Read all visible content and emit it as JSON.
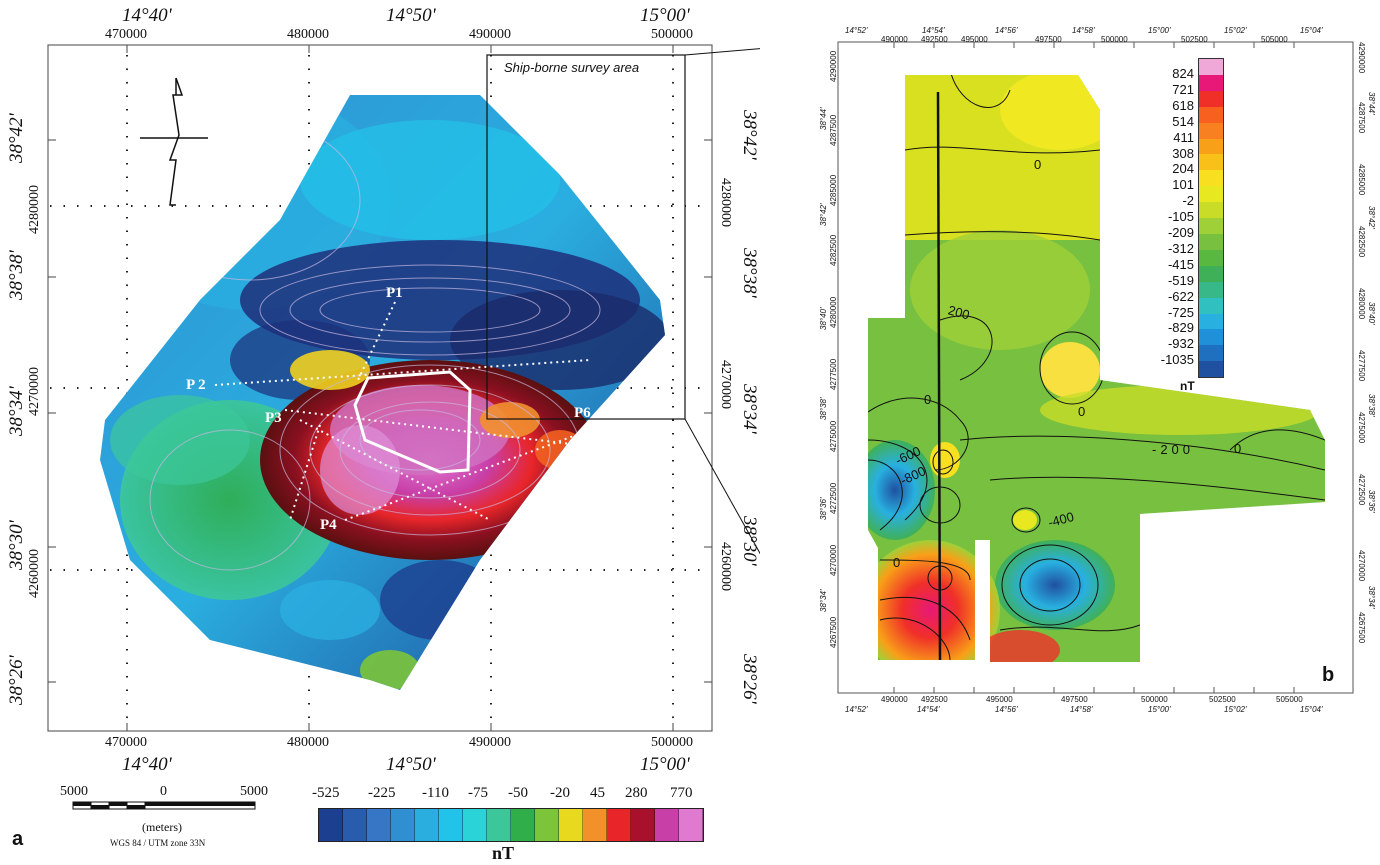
{
  "panel_a": {
    "label": "a",
    "lon_labels": [
      "14°40'",
      "14°50'",
      "15°00'"
    ],
    "easting_labels": [
      "470000",
      "480000",
      "490000",
      "500000"
    ],
    "northing_labels": [
      "4280000",
      "4270000",
      "4260000"
    ],
    "lat_labels_left": [
      "38°42'",
      "38°38'",
      "38°34'",
      "38°30'",
      "38°26'"
    ],
    "lat_labels_right": [
      "38°42'",
      "38°38'",
      "38°34'",
      "38°30'",
      "38°26'"
    ],
    "survey_area_label": "Ship-borne survey area",
    "profiles": [
      "P1",
      "P 2",
      "P3",
      "P4",
      "P6"
    ],
    "scale": {
      "left": "5000",
      "center": "0",
      "right": "5000",
      "unit": "(meters)",
      "datum": "WGS 84 / UTM zone 33N"
    },
    "colorbar": {
      "values": [
        "-525",
        "-225",
        "-110",
        "-75",
        "-50",
        "-20",
        "45",
        "280",
        "770"
      ],
      "unit": "nT",
      "colors": [
        "#1d3f8f",
        "#2a5cad",
        "#3676c4",
        "#2f8fd0",
        "#2aaee0",
        "#22c3e8",
        "#2ad3d8",
        "#3cc79a",
        "#2fae4a",
        "#7cc43a",
        "#e8d81e",
        "#f2902a",
        "#e8262a",
        "#a8102c",
        "#c83fa8",
        "#e07ad0"
      ]
    }
  },
  "panel_b": {
    "label": "b",
    "lon_labels_top": [
      "14°52'",
      "14°54'",
      "14°56'",
      "14°58'",
      "15°00'",
      "15°02'",
      "15°04'"
    ],
    "easting_labels_top": [
      "490000",
      "492500",
      "495000",
      "497500",
      "500000",
      "502500",
      "505000"
    ],
    "lon_labels_bottom": [
      "14°52'",
      "14°54'",
      "14°56'",
      "14°58'",
      "15°00'",
      "15°02'",
      "15°04'"
    ],
    "easting_labels_bottom": [
      "490000",
      "492500",
      "495000",
      "497500",
      "500000",
      "502500",
      "505000"
    ],
    "northing_labels": [
      "4290000",
      "4287500",
      "4285000",
      "4282500",
      "4280000",
      "4277500",
      "4275000",
      "4272500",
      "4270000",
      "4267500"
    ],
    "lat_labels": [
      "38°44'",
      "38°42'",
      "38°40'",
      "38°38'",
      "38°36'",
      "38°34'"
    ],
    "legend_values": [
      "824",
      "721",
      "618",
      "514",
      "411",
      "308",
      "204",
      "101",
      "-2",
      "-105",
      "-209",
      "-312",
      "-415",
      "-519",
      "-622",
      "-725",
      "-829",
      "-932",
      "-1035"
    ],
    "legend_colors": [
      "#f0a8d8",
      "#e81878",
      "#f03028",
      "#f86020",
      "#f88020",
      "#f8a018",
      "#f8c018",
      "#f8e020",
      "#e8e820",
      "#c8dc28",
      "#a0d038",
      "#78c040",
      "#58b840",
      "#40b058",
      "#38b888",
      "#30c0c0",
      "#28b0e0",
      "#2090d8",
      "#2070c0",
      "#2050a0"
    ],
    "legend_unit": "nT",
    "contour_labels": [
      "0",
      "200",
      "0",
      "0",
      "-200",
      "0",
      "-600",
      "-800",
      "-400",
      "0"
    ]
  }
}
